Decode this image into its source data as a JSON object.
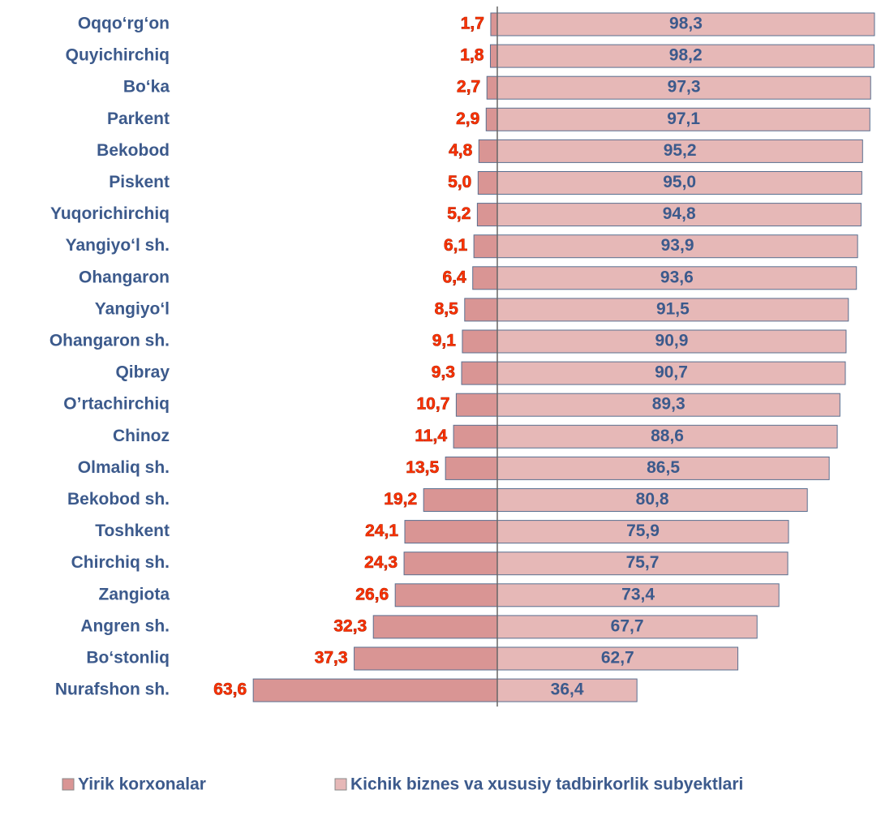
{
  "chart_data": {
    "type": "diverging_bar",
    "categories": [
      "Oqqo‘rg‘on",
      "Quyichirchiq",
      "Bo‘ka",
      "Parkent",
      "Bekobod",
      "Piskent",
      "Yuqorichirchiq",
      "Yangiyo‘l sh.",
      "Ohangaron",
      "Yangiyo‘l",
      "Ohangaron sh.",
      "Qibray",
      "O’rtachirchiq",
      "Chinoz",
      "Olmaliq sh.",
      "Bekobod sh.",
      "Toshkent",
      "Chirchiq sh.",
      "Zangiota",
      "Angren sh.",
      "Bo‘stonliq",
      "Nurafshon sh."
    ],
    "series": [
      {
        "name": "Yirik korxonalar",
        "color": "#d99594",
        "label_color": "#ff3300",
        "values": [
          1.7,
          1.8,
          2.7,
          2.9,
          4.8,
          5.0,
          5.2,
          6.1,
          6.4,
          8.5,
          9.1,
          9.3,
          10.7,
          11.4,
          13.5,
          19.2,
          24.1,
          24.3,
          26.6,
          32.3,
          37.3,
          63.6
        ],
        "value_labels": [
          "1,7",
          "1,8",
          "2,7",
          "2,9",
          "4,8",
          "5,0",
          "5,2",
          "6,1",
          "6,4",
          "8,5",
          "9,1",
          "9,3",
          "10,7",
          "11,4",
          "13,5",
          "19,2",
          "24,1",
          "24,3",
          "26,6",
          "32,3",
          "37,3",
          "63,6"
        ]
      },
      {
        "name": "Kichik biznes va xususiy tadbirkorlik subyektlari",
        "color": "#e6b8b7",
        "label_color": "#3c5a8c",
        "values": [
          98.3,
          98.2,
          97.3,
          97.1,
          95.2,
          95.0,
          94.8,
          93.9,
          93.6,
          91.5,
          90.9,
          90.7,
          89.3,
          88.6,
          86.5,
          80.8,
          75.9,
          75.7,
          73.4,
          67.7,
          62.7,
          36.4
        ],
        "value_labels": [
          "98,3",
          "98,2",
          "97,3",
          "97,1",
          "95,2",
          "95,0",
          "94,8",
          "93,9",
          "93,6",
          "91,5",
          "90,9",
          "90,7",
          "89,3",
          "88,6",
          "86,5",
          "80,8",
          "75,9",
          "75,7",
          "73,4",
          "67,7",
          "62,7",
          "36,4"
        ]
      }
    ],
    "legend": "bottom"
  }
}
